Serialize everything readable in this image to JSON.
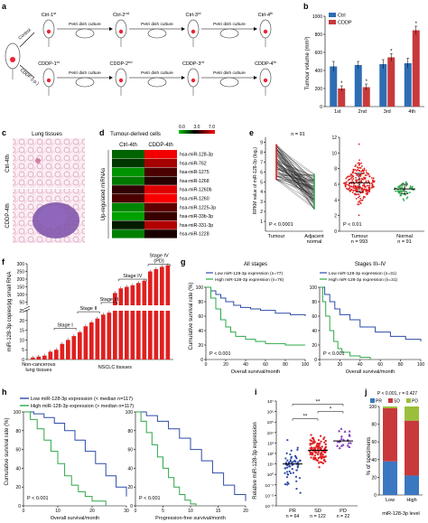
{
  "panels": {
    "a": {
      "label": "a",
      "ctrl_branch": "Control",
      "cddp_branch": "CDDP (i.p.)",
      "ctrl_stages": [
        "Ctrl-1st",
        "Ctrl-2nd",
        "Ctrl-3rd",
        "Ctrl-4th"
      ],
      "cddp_stages": [
        "CDDP-1st",
        "CDDP-2nd",
        "CDDP-3rd",
        "CDDP-4th"
      ],
      "step_label": "Petri dish culture"
    },
    "b": {
      "label": "b",
      "chart_data": {
        "type": "bar",
        "categories": [
          "1st",
          "2nd",
          "3rd",
          "4th"
        ],
        "series": [
          {
            "name": "Ctrl",
            "values": [
              445,
              460,
              470,
              480
            ],
            "errors": [
              55,
              40,
              50,
              55
            ],
            "color": "#2e6db4"
          },
          {
            "name": "CDDP",
            "values": [
              200,
              215,
              545,
              845
            ],
            "errors": [
              30,
              35,
              40,
              45
            ],
            "color": "#c8393b"
          }
        ],
        "ylabel": "Tumour volume (mm³)",
        "ylim": [
          0,
          1000
        ],
        "yticks": [
          0,
          200,
          400,
          600,
          800,
          1000
        ],
        "sig": [
          "*",
          "*",
          "*",
          "*"
        ],
        "legend": "top-left"
      }
    },
    "c": {
      "label": "c",
      "title": "Lung tissues",
      "top_label": "Ctrl-4th",
      "bottom_label": "CDDP-4th"
    },
    "d": {
      "label": "d",
      "title": "Tumour-derived cells",
      "col_labels": [
        "Ctrl-4th",
        "CDDP-4th"
      ],
      "side_label": "Up-regulated miRNAs",
      "scale": [
        "0.0",
        "3.0",
        "7.0"
      ],
      "chart_data": {
        "type": "heatmap",
        "rows": [
          "hsa-miR-128-3p",
          "hsa-miR-762",
          "hsa-miR-1275",
          "hsa-miR-1268",
          "hsa-miR-1260b",
          "hsa-miR-1260",
          "hsa-miR-1225-3p",
          "hsa-miR-33b-3p",
          "hsa-miR-331-3p",
          "hsa-miR-1228"
        ],
        "columns": [
          "Ctrl-4th",
          "CDDP-4th"
        ],
        "values": [
          [
            1.5,
            6.8
          ],
          [
            2.2,
            5.6
          ],
          [
            0.8,
            4.2
          ],
          [
            1.2,
            3.6
          ],
          [
            3.8,
            6.5
          ],
          [
            4.2,
            6.9
          ],
          [
            1.0,
            4.5
          ],
          [
            0.6,
            3.9
          ],
          [
            2.6,
            5.8
          ],
          [
            1.1,
            3.4
          ]
        ]
      }
    },
    "e": {
      "label": "e",
      "ylabel": "RPKM value of miR-128-3p (log₂)",
      "left": {
        "n": "n = 91",
        "p": "P < 0.0001",
        "xlabels": [
          "Tumour",
          "Adjacent normal"
        ],
        "yticks": [
          1,
          2,
          3,
          4,
          5,
          6,
          7,
          8,
          9
        ]
      },
      "right": {
        "p": "P < 0.01",
        "xlabels": [
          "Tumour",
          "Normal"
        ],
        "n_labels": [
          "n = 993",
          "n = 91"
        ],
        "yticks": [
          0,
          2,
          4,
          6,
          8,
          10,
          12
        ],
        "chart_data": {
          "type": "scatter",
          "groups": [
            {
              "name": "Tumour",
              "mean": 6.2,
              "sd": 1.2,
              "color": "#e02020"
            },
            {
              "name": "Normal",
              "mean": 5.4,
              "sd": 0.6,
              "color": "#2ea84a"
            }
          ],
          "ylim": [
            0,
            12
          ]
        }
      }
    },
    "f": {
      "label": "f",
      "ylabel": "miR-128-3p copies/pg small RNA",
      "stages": [
        "Stage I",
        "Stage II",
        "Stage III",
        "Stage IV",
        "Stage IV (PD)"
      ],
      "xlabels": [
        "Non-cancerous lung tissues",
        "NSCLC tissues"
      ],
      "yticks_top": [
        50,
        100,
        150,
        200,
        250,
        300
      ],
      "yticks_bottom": [
        0,
        5,
        10,
        15,
        20,
        25
      ],
      "chart_data": {
        "type": "bar",
        "values": [
          1,
          1.5,
          2,
          4,
          5,
          8,
          10,
          12,
          14,
          17,
          19,
          21,
          23,
          24,
          110,
          140,
          150,
          160,
          175,
          190,
          250,
          265,
          280,
          290
        ],
        "ylim": [
          0,
          300
        ],
        "color": "#e02020"
      }
    },
    "g": {
      "label": "g",
      "ylabel": "Cumulative survival rate (%)",
      "xlabel": "Overall survival/month",
      "yticks": [
        0,
        20,
        40,
        60,
        80,
        100
      ],
      "left": {
        "title": "All stages",
        "legend": [
          "Low miR-128-3p expression (n=77)",
          "High miR-128-3p expression (n=76)"
        ],
        "p": "P < 0.001",
        "xticks": [
          0,
          20,
          40,
          60,
          80,
          100
        ],
        "chart_data": {
          "type": "line",
          "series": [
            {
              "name": "Low miR-128-3p expression (n=77)",
              "x": [
                0,
                5,
                10,
                15,
                20,
                28,
                35,
                45,
                55,
                70,
                85,
                100
              ],
              "y": [
                100,
                95,
                90,
                85,
                80,
                75,
                72,
                70,
                68,
                64,
                62,
                60
              ],
              "color": "#2e4ba8"
            },
            {
              "name": "High miR-128-3p expression (n=76)",
              "x": [
                0,
                5,
                10,
                15,
                20,
                25,
                30,
                40,
                50,
                60,
                80,
                100
              ],
              "y": [
                100,
                85,
                70,
                55,
                45,
                38,
                32,
                28,
                25,
                22,
                20,
                20
              ],
              "color": "#2ea84a"
            }
          ],
          "xlim": [
            0,
            100
          ],
          "ylim": [
            0,
            100
          ]
        }
      },
      "right": {
        "title": "Stages III–IV",
        "legend": [
          "Low miR-128-3p expression (n=31)",
          "High miR-128-3p expression (n=31)"
        ],
        "p": "P < 0.001",
        "xticks": [
          0,
          20,
          40,
          60,
          80,
          100
        ],
        "chart_data": {
          "type": "line",
          "series": [
            {
              "name": "Low miR-128-3p expression (n=31)",
              "x": [
                0,
                5,
                10,
                15,
                20,
                30,
                40,
                55,
                70,
                85,
                100
              ],
              "y": [
                100,
                90,
                80,
                70,
                62,
                55,
                45,
                38,
                32,
                28,
                25
              ],
              "color": "#2e4ba8"
            },
            {
              "name": "High miR-128-3p expression (n=31)",
              "x": [
                0,
                3,
                6,
                10,
                14,
                18,
                22,
                30,
                40,
                50
              ],
              "y": [
                100,
                80,
                60,
                40,
                25,
                15,
                10,
                5,
                3,
                0
              ],
              "color": "#2ea84a"
            }
          ],
          "xlim": [
            0,
            100
          ],
          "ylim": [
            0,
            100
          ]
        }
      }
    },
    "h": {
      "label": "h",
      "ylabel": "Cumulative survival rate (%)",
      "legend": [
        "Low miR-128-3p expression (< median n=117)",
        "High miR-128-3p expression (> median n=117)"
      ],
      "yticks": [
        0,
        20,
        40,
        60,
        80,
        100
      ],
      "left": {
        "xlabel": "Overall survival/month",
        "p": "P < 0.001",
        "xticks": [
          0,
          10,
          20,
          30
        ],
        "chart_data": {
          "type": "line",
          "series": [
            {
              "name": "Low miR-128-3p expression (< median n=117)",
              "x": [
                0,
                3,
                6,
                9,
                12,
                15,
                18,
                21,
                24,
                27,
                30
              ],
              "y": [
                100,
                98,
                94,
                88,
                80,
                70,
                58,
                45,
                32,
                20,
                10
              ],
              "color": "#2e4ba8"
            },
            {
              "name": "High miR-128-3p expression (> median n=117)",
              "x": [
                0,
                2,
                4,
                6,
                8,
                10,
                12,
                14,
                16,
                18,
                20,
                24
              ],
              "y": [
                100,
                92,
                82,
                70,
                58,
                45,
                32,
                22,
                15,
                10,
                5,
                0
              ],
              "color": "#2ea84a"
            }
          ],
          "xlim": [
            0,
            30
          ],
          "ylim": [
            0,
            100
          ]
        }
      },
      "right": {
        "xlabel": "Progression-free survival/month",
        "p": "P < 0.001",
        "xticks": [
          0,
          5,
          10,
          15,
          20
        ],
        "chart_data": {
          "type": "line",
          "series": [
            {
              "name": "Low miR-128-3p expression (< median n=117)",
              "x": [
                0,
                2,
                4,
                6,
                8,
                10,
                12,
                14,
                16,
                18,
                20
              ],
              "y": [
                100,
                96,
                90,
                82,
                72,
                60,
                48,
                35,
                22,
                12,
                5
              ],
              "color": "#2e4ba8"
            },
            {
              "name": "High miR-128-3p expression (> median n=117)",
              "x": [
                0,
                1,
                2,
                3,
                4,
                5,
                6,
                7,
                8,
                9,
                10,
                11
              ],
              "y": [
                100,
                90,
                78,
                65,
                52,
                40,
                30,
                20,
                12,
                6,
                2,
                0
              ],
              "color": "#2ea84a"
            }
          ],
          "xlim": [
            0,
            20
          ],
          "ylim": [
            0,
            100
          ]
        }
      }
    },
    "i": {
      "label": "i",
      "ylabel": "Relative miR-128-3p expression",
      "yticks": [
        "10⁻³",
        "10⁻²",
        "10⁻¹",
        "10⁰",
        "10¹",
        "10²",
        "10³",
        "10⁴",
        "10⁵",
        "10⁶",
        "10⁷"
      ],
      "groups": [
        "PR",
        "SD",
        "PD"
      ],
      "n_labels": [
        "n = 64",
        "n = 122",
        "n = 22"
      ],
      "sig": [
        "**",
        "*",
        "**"
      ],
      "chart_data": {
        "type": "scatter",
        "groups": [
          {
            "name": "PR",
            "median_log10": 1.0,
            "spread": 1.6,
            "color": "#2e4ba8"
          },
          {
            "name": "SD",
            "median_log10": 2.3,
            "spread": 1.1,
            "color": "#e02020"
          },
          {
            "name": "PD",
            "median_log10": 3.2,
            "spread": 1.0,
            "color": "#7b2fb0"
          }
        ],
        "ylim": [
          -3,
          7
        ],
        "yscale": "log"
      }
    },
    "j": {
      "label": "j",
      "stat_p": "P < 0.001",
      "stat_r": "r = 0.427",
      "ylabel": "% of specimens",
      "xlabel": "miR-128-3p level",
      "legend": [
        "PR",
        "SD",
        "PD"
      ],
      "yticks": [
        0,
        20,
        40,
        60,
        80,
        100
      ],
      "chart_data": {
        "type": "bar",
        "stacked": true,
        "categories": [
          "Low",
          "High"
        ],
        "series": [
          {
            "name": "PR",
            "values": [
              38,
              22
            ],
            "color": "#3a78c2"
          },
          {
            "name": "SD",
            "values": [
              60,
              62
            ],
            "color": "#c8393b"
          },
          {
            "name": "PD",
            "values": [
              2,
              16
            ],
            "color": "#9abf3c"
          }
        ],
        "ylim": [
          0,
          100
        ]
      }
    }
  }
}
